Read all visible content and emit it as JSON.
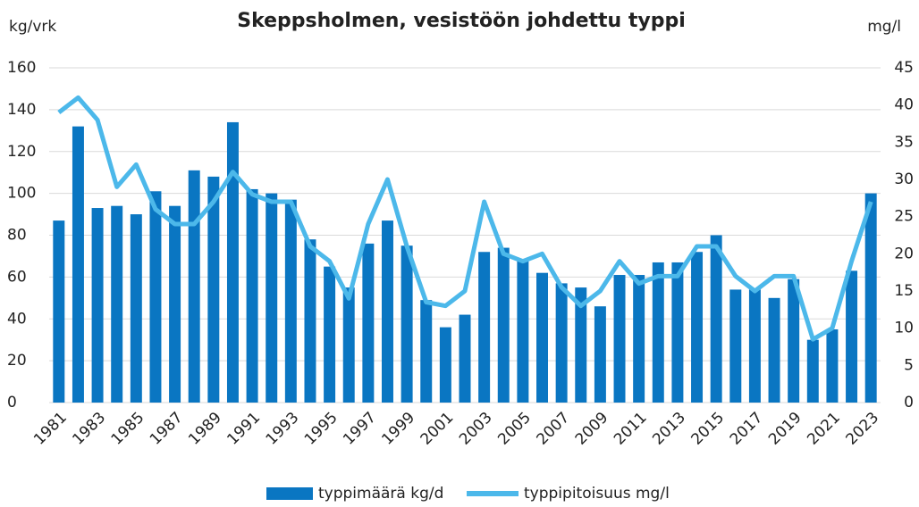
{
  "chart_data": {
    "type": "bar",
    "title": "Skeppsholmen, vesistöön johdettu typpi",
    "ylabel": "kg/vrk",
    "y2label": "mg/l",
    "categories": [
      "1981",
      null,
      "1983",
      null,
      "1985",
      null,
      "1987",
      null,
      "1989",
      null,
      "1991",
      null,
      "1993",
      null,
      "1995",
      null,
      "1997",
      null,
      "1999",
      null,
      "2001",
      null,
      "2003",
      null,
      "2005",
      null,
      "2007",
      null,
      "2009",
      null,
      "2011",
      null,
      "2013",
      null,
      "2015",
      null,
      "2017",
      null,
      "2019",
      null,
      "2021",
      null,
      "2023"
    ],
    "series": [
      {
        "name": "typpimäärä kg/d",
        "type": "bar",
        "color": "#0a76c2",
        "values": [
          87,
          132,
          93,
          94,
          90,
          101,
          94,
          111,
          108,
          134,
          102,
          100,
          97,
          78,
          65,
          55,
          76,
          87,
          75,
          49,
          36,
          42,
          72,
          74,
          68,
          62,
          57,
          55,
          46,
          61,
          61,
          67,
          67,
          72,
          80,
          54,
          54,
          50,
          59,
          30,
          35,
          63,
          100
        ]
      },
      {
        "name": "typpipitoisuus mg/l",
        "type": "line",
        "axis": "y2",
        "color": "#4cb8ea",
        "values": [
          39,
          41,
          38,
          29,
          32,
          26,
          24,
          24,
          27,
          31,
          28,
          27,
          27,
          21,
          19,
          14,
          24,
          30,
          21,
          13.5,
          13,
          15,
          27,
          20,
          19,
          20,
          15.5,
          13,
          15,
          19,
          16,
          17,
          17,
          21,
          21,
          17,
          15,
          17,
          17,
          8.5,
          10,
          19,
          27
        ]
      }
    ],
    "ylim": [
      0,
      160
    ],
    "yticks": [
      0,
      20,
      40,
      60,
      80,
      100,
      120,
      140,
      160
    ],
    "y2lim": [
      0,
      45
    ],
    "y2ticks": [
      0,
      5,
      10,
      15,
      20,
      25,
      30,
      35,
      40,
      45
    ],
    "grid": true,
    "legend": "bottom"
  }
}
